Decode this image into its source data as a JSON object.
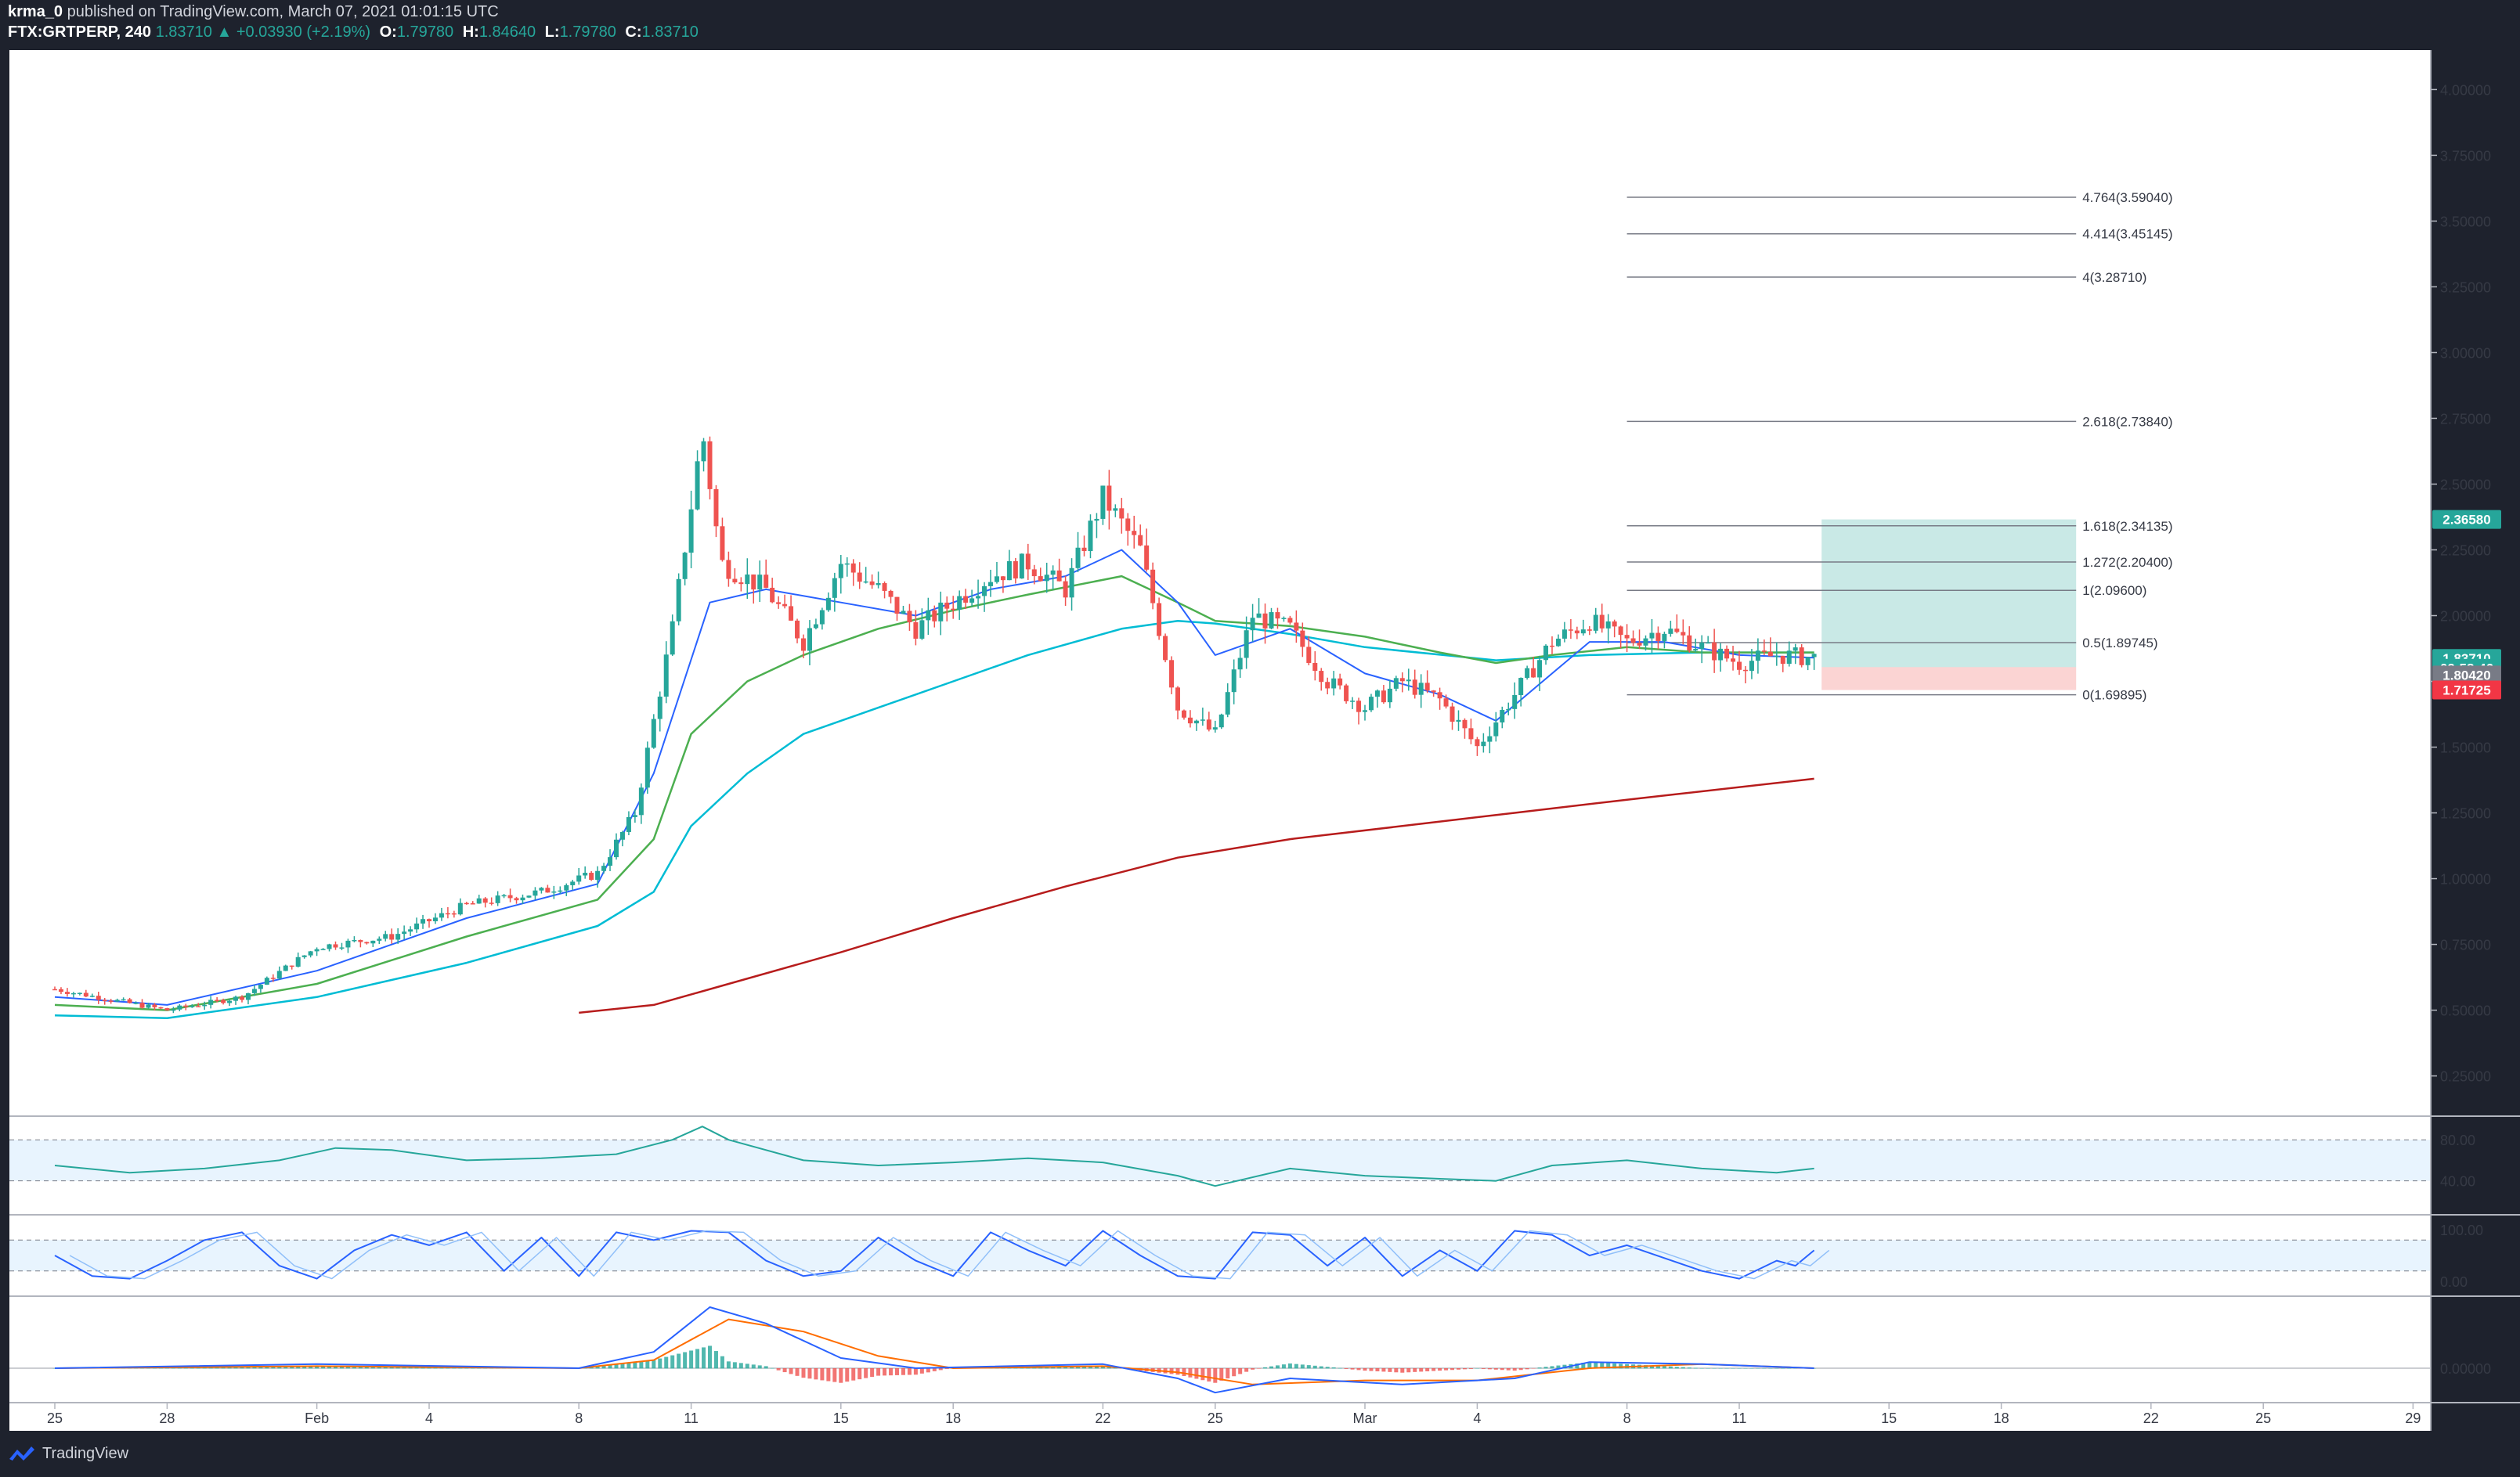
{
  "header": {
    "author": "krma_0",
    "published_text": "published on TradingView.com, March 07, 2021 01:01:15 UTC",
    "symbol": "FTX:GRTPERP, 240",
    "last": "1.83710",
    "change": "+0.03930 (+2.19%)",
    "open_label": "O:",
    "open": "1.79780",
    "high_label": "H:",
    "high": "1.84640",
    "low_label": "L:",
    "low": "1.79780",
    "close_label": "C:",
    "close": "1.83710"
  },
  "footer": {
    "brand": "TradingView"
  },
  "colors": {
    "bg": "#ffffff",
    "frame": "#1e222d",
    "up": "#26a69a",
    "down": "#ef5350",
    "ema_fast": "#2962ff",
    "ema_green": "#4caf50",
    "ema_cyan": "#00bcd4",
    "ma200": "#b71c1c",
    "target_zone": "#26a69a",
    "stop_zone": "#ef5350"
  },
  "chart_data": {
    "type": "candlestick",
    "symbol": "FTX:GRTPERP",
    "interval": "240",
    "price_axis": {
      "min": 0.1,
      "max": 4.15,
      "ticks": [
        "4.00000",
        "3.75000",
        "3.50000",
        "3.25000",
        "3.00000",
        "2.75000",
        "2.50000",
        "2.25000",
        "2.00000",
        "1.75000",
        "1.50000",
        "1.25000",
        "1.00000",
        "0.75000",
        "0.50000",
        "0.25000"
      ]
    },
    "time_axis": {
      "days_from_jan25": [
        0,
        3,
        7,
        10,
        14,
        17,
        21,
        24,
        28,
        31,
        35,
        38,
        42,
        45,
        49,
        52,
        56,
        59,
        63
      ],
      "labels": [
        "25",
        "28",
        "Feb",
        "4",
        "8",
        "11",
        "15",
        "18",
        "22",
        "25",
        "Mar",
        "4",
        "8",
        "11",
        "15",
        "18",
        "22",
        "25",
        "29"
      ]
    },
    "price_path": [
      [
        0,
        0.58
      ],
      [
        3,
        0.5
      ],
      [
        5,
        0.55
      ],
      [
        7,
        0.74
      ],
      [
        9,
        0.78
      ],
      [
        11,
        0.9
      ],
      [
        13,
        0.95
      ],
      [
        14.5,
        1.02
      ],
      [
        15.5,
        1.25
      ],
      [
        16.5,
        1.95
      ],
      [
        17.3,
        2.7
      ],
      [
        17.8,
        2.2
      ],
      [
        19,
        2.1
      ],
      [
        20,
        1.9
      ],
      [
        21,
        2.2
      ],
      [
        22,
        2.1
      ],
      [
        23,
        1.95
      ],
      [
        24,
        2.05
      ],
      [
        25,
        2.15
      ],
      [
        26,
        2.2
      ],
      [
        27,
        2.1
      ],
      [
        28,
        2.45
      ],
      [
        29,
        2.25
      ],
      [
        30,
        1.65
      ],
      [
        31,
        1.55
      ],
      [
        32,
        2.0
      ],
      [
        33,
        1.95
      ],
      [
        34,
        1.75
      ],
      [
        35,
        1.65
      ],
      [
        36,
        1.75
      ],
      [
        37,
        1.68
      ],
      [
        38,
        1.5
      ],
      [
        39,
        1.7
      ],
      [
        40,
        1.9
      ],
      [
        41,
        1.98
      ],
      [
        42,
        1.9
      ],
      [
        43,
        1.95
      ],
      [
        44,
        1.88
      ],
      [
        45,
        1.82
      ],
      [
        46,
        1.85
      ],
      [
        47,
        1.84
      ]
    ],
    "ema_fast_path": [
      [
        0,
        0.55
      ],
      [
        3,
        0.52
      ],
      [
        7,
        0.65
      ],
      [
        11,
        0.85
      ],
      [
        14.5,
        0.98
      ],
      [
        16,
        1.4
      ],
      [
        17.5,
        2.05
      ],
      [
        19,
        2.1
      ],
      [
        21,
        2.05
      ],
      [
        23,
        2.0
      ],
      [
        25,
        2.1
      ],
      [
        27,
        2.15
      ],
      [
        28.5,
        2.25
      ],
      [
        30,
        2.05
      ],
      [
        31,
        1.85
      ],
      [
        33,
        1.95
      ],
      [
        35,
        1.78
      ],
      [
        37,
        1.7
      ],
      [
        38.5,
        1.6
      ],
      [
        40,
        1.78
      ],
      [
        41,
        1.9
      ],
      [
        43,
        1.9
      ],
      [
        45,
        1.85
      ],
      [
        47,
        1.84
      ]
    ],
    "ema_green_path": [
      [
        0,
        0.52
      ],
      [
        3,
        0.5
      ],
      [
        7,
        0.6
      ],
      [
        11,
        0.78
      ],
      [
        14.5,
        0.92
      ],
      [
        16,
        1.15
      ],
      [
        17,
        1.55
      ],
      [
        18.5,
        1.75
      ],
      [
        20,
        1.85
      ],
      [
        22,
        1.95
      ],
      [
        24,
        2.02
      ],
      [
        26,
        2.08
      ],
      [
        28.5,
        2.15
      ],
      [
        30,
        2.05
      ],
      [
        31,
        1.98
      ],
      [
        33,
        1.96
      ],
      [
        35,
        1.92
      ],
      [
        37,
        1.86
      ],
      [
        38.5,
        1.82
      ],
      [
        40,
        1.85
      ],
      [
        42,
        1.88
      ],
      [
        44,
        1.86
      ],
      [
        47,
        1.86
      ]
    ],
    "ema_cyan_path": [
      [
        0,
        0.48
      ],
      [
        3,
        0.47
      ],
      [
        7,
        0.55
      ],
      [
        11,
        0.68
      ],
      [
        14.5,
        0.82
      ],
      [
        16,
        0.95
      ],
      [
        17,
        1.2
      ],
      [
        18.5,
        1.4
      ],
      [
        20,
        1.55
      ],
      [
        22,
        1.65
      ],
      [
        24,
        1.75
      ],
      [
        26,
        1.85
      ],
      [
        28.5,
        1.95
      ],
      [
        30,
        1.98
      ],
      [
        31,
        1.97
      ],
      [
        33,
        1.93
      ],
      [
        35,
        1.88
      ],
      [
        38.5,
        1.83
      ],
      [
        41,
        1.85
      ],
      [
        44,
        1.86
      ],
      [
        47,
        1.86
      ]
    ],
    "ma200_path": [
      [
        14,
        0.49
      ],
      [
        16,
        0.52
      ],
      [
        18,
        0.6
      ],
      [
        21,
        0.72
      ],
      [
        24,
        0.85
      ],
      [
        27,
        0.97
      ],
      [
        30,
        1.08
      ],
      [
        33,
        1.15
      ],
      [
        36,
        1.2
      ],
      [
        39,
        1.25
      ],
      [
        42,
        1.3
      ],
      [
        47,
        1.38
      ]
    ],
    "fib_levels": [
      {
        "label": "0(1.69895)",
        "price": 1.69895
      },
      {
        "label": "0.5(1.89745)",
        "price": 1.89745
      },
      {
        "label": "1(2.09600)",
        "price": 2.096
      },
      {
        "label": "1.272(2.20400)",
        "price": 2.204
      },
      {
        "label": "1.618(2.34135)",
        "price": 2.34135
      },
      {
        "label": "2.618(2.73840)",
        "price": 2.7384
      },
      {
        "label": "4(3.28710)",
        "price": 3.2871
      },
      {
        "label": "4.414(3.45145)",
        "price": 3.45145
      },
      {
        "label": "4.764(3.59040)",
        "price": 3.5904
      }
    ],
    "fib_day_range": [
      42.0,
      54.0
    ],
    "position": {
      "day_range": [
        47.2,
        54.0
      ],
      "entry": 1.8042,
      "target": 2.3658,
      "stop": 1.71725
    },
    "price_badges": [
      {
        "text": "2.36580",
        "price": 2.3658,
        "color": "#26a69a"
      },
      {
        "text": "1.83710",
        "price": 1.8371,
        "color": "#26a69a"
      },
      {
        "text": "02:58:46",
        "price": 1.8,
        "color": "#26a69a"
      },
      {
        "text": "1.80420",
        "price": 1.7742,
        "color": "#787b86"
      },
      {
        "text": "1.71725",
        "price": 1.7173,
        "color": "#f23645"
      }
    ],
    "rsi": {
      "levels": [
        "80.00",
        "40.00"
      ],
      "path": [
        [
          0,
          55
        ],
        [
          2,
          48
        ],
        [
          4,
          52
        ],
        [
          6,
          60
        ],
        [
          7.5,
          72
        ],
        [
          9,
          70
        ],
        [
          11,
          60
        ],
        [
          13,
          62
        ],
        [
          15,
          66
        ],
        [
          16.5,
          80
        ],
        [
          17.3,
          93
        ],
        [
          18,
          80
        ],
        [
          20,
          60
        ],
        [
          22,
          55
        ],
        [
          24,
          58
        ],
        [
          26,
          62
        ],
        [
          28,
          58
        ],
        [
          30,
          45
        ],
        [
          31,
          35
        ],
        [
          33,
          52
        ],
        [
          35,
          45
        ],
        [
          37,
          42
        ],
        [
          38.5,
          40
        ],
        [
          40,
          55
        ],
        [
          42,
          60
        ],
        [
          44,
          52
        ],
        [
          46,
          48
        ],
        [
          47,
          52
        ]
      ]
    },
    "stoch": {
      "levels": [
        "100.00",
        "0.00"
      ],
      "path": [
        [
          0,
          50
        ],
        [
          1,
          10
        ],
        [
          2,
          5
        ],
        [
          3,
          40
        ],
        [
          4,
          80
        ],
        [
          5,
          95
        ],
        [
          6,
          30
        ],
        [
          7,
          5
        ],
        [
          8,
          60
        ],
        [
          9,
          90
        ],
        [
          10,
          70
        ],
        [
          11,
          95
        ],
        [
          12,
          20
        ],
        [
          13,
          85
        ],
        [
          14,
          10
        ],
        [
          15,
          95
        ],
        [
          16,
          80
        ],
        [
          17,
          98
        ],
        [
          18,
          95
        ],
        [
          19,
          40
        ],
        [
          20,
          10
        ],
        [
          21,
          20
        ],
        [
          22,
          85
        ],
        [
          23,
          40
        ],
        [
          24,
          10
        ],
        [
          25,
          95
        ],
        [
          26,
          60
        ],
        [
          27,
          30
        ],
        [
          28,
          98
        ],
        [
          29,
          50
        ],
        [
          30,
          10
        ],
        [
          31,
          5
        ],
        [
          32,
          95
        ],
        [
          33,
          90
        ],
        [
          34,
          30
        ],
        [
          35,
          85
        ],
        [
          36,
          10
        ],
        [
          37,
          60
        ],
        [
          38,
          20
        ],
        [
          39,
          98
        ],
        [
          40,
          90
        ],
        [
          41,
          50
        ],
        [
          42,
          70
        ],
        [
          44,
          20
        ],
        [
          45,
          5
        ],
        [
          46,
          40
        ],
        [
          46.5,
          30
        ],
        [
          47,
          60
        ]
      ]
    },
    "macd": {
      "level": "0.00000",
      "macd_path": [
        [
          0,
          0
        ],
        [
          7,
          0.02
        ],
        [
          14,
          0
        ],
        [
          16,
          0.08
        ],
        [
          17.5,
          0.3
        ],
        [
          19,
          0.22
        ],
        [
          21,
          0.05
        ],
        [
          23,
          0
        ],
        [
          28,
          0.02
        ],
        [
          30,
          -0.05
        ],
        [
          31,
          -0.12
        ],
        [
          33,
          -0.05
        ],
        [
          36,
          -0.08
        ],
        [
          39,
          -0.05
        ],
        [
          41,
          0.03
        ],
        [
          44,
          0.02
        ],
        [
          47,
          0
        ]
      ],
      "signal_path": [
        [
          0,
          0
        ],
        [
          7,
          0.01
        ],
        [
          14,
          0
        ],
        [
          16,
          0.04
        ],
        [
          18,
          0.24
        ],
        [
          20,
          0.18
        ],
        [
          22,
          0.06
        ],
        [
          24,
          0
        ],
        [
          28,
          0.01
        ],
        [
          30,
          -0.02
        ],
        [
          32,
          -0.08
        ],
        [
          35,
          -0.06
        ],
        [
          38,
          -0.06
        ],
        [
          41,
          0
        ],
        [
          44,
          0.02
        ],
        [
          47,
          0
        ]
      ]
    }
  }
}
